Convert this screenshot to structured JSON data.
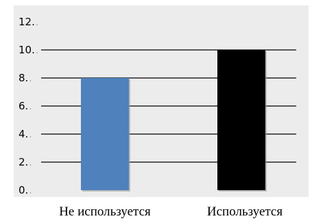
{
  "chart_data": {
    "type": "bar",
    "categories": [
      "Не используется",
      "Используется"
    ],
    "values": [
      8,
      10
    ],
    "colors": [
      "#4f81bd",
      "#000000"
    ],
    "ylim": [
      0,
      12
    ],
    "yticks": [
      "0",
      "2",
      "4",
      "6",
      "8",
      "10",
      "12"
    ],
    "grid": true,
    "plot_background": "#ececec",
    "gridline_color": "#000000"
  }
}
